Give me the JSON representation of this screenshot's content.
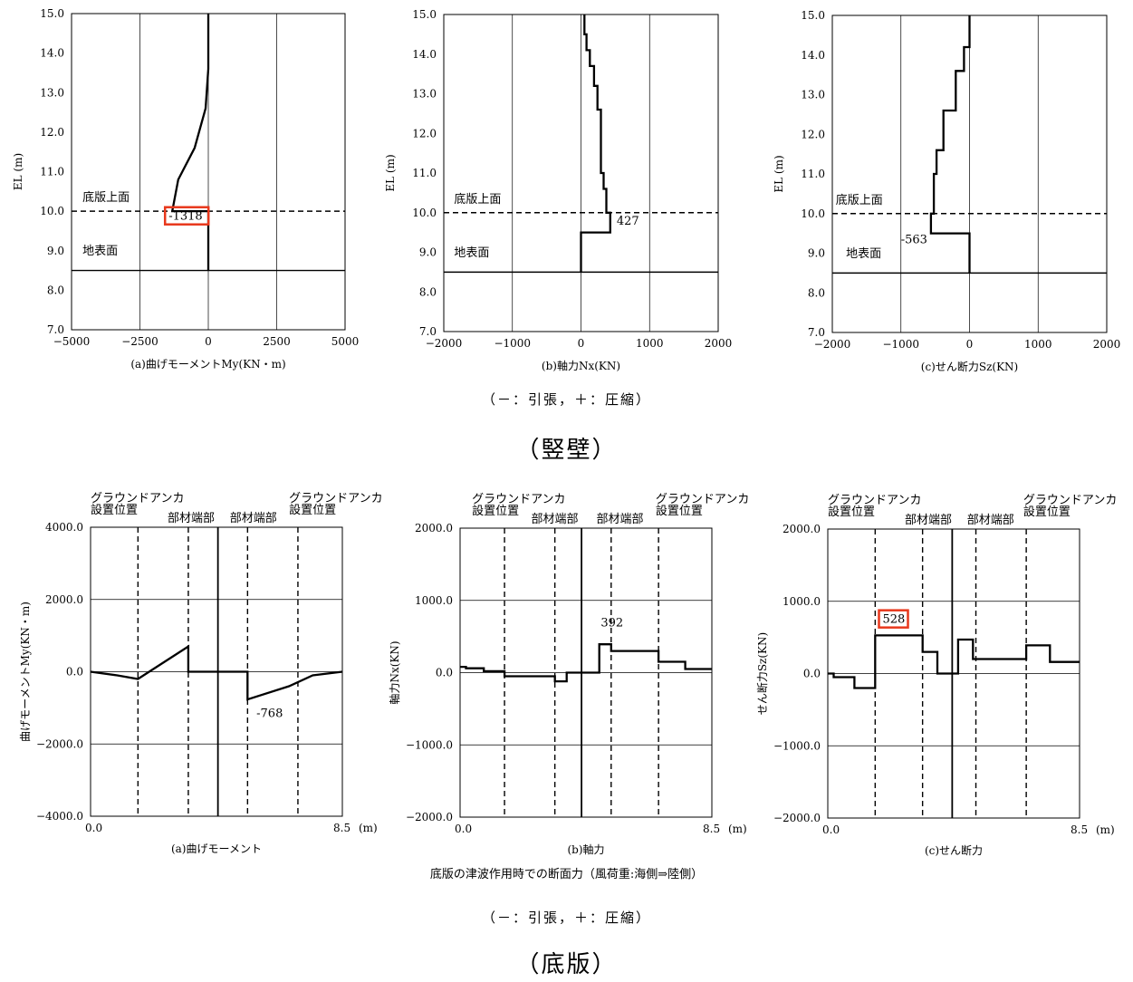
{
  "page": {
    "wall_note": "（－：引張，＋：圧縮）",
    "wall_title": "（竪壁）",
    "slab_caption": "底版の津波作用時での断面力（風荷重:海側⇒陸側）",
    "slab_note": "（－：引張，＋：圧縮）",
    "slab_title": "（底版）"
  },
  "chart_data": [
    {
      "id": "wall_moment",
      "type": "line",
      "orientation": "vertical",
      "xlabel": "(a)曲げモーメントMy(KN・m)",
      "ylabel": "EL (m)",
      "xlim": [
        -5000,
        5000
      ],
      "ylim": [
        7.0,
        15.0
      ],
      "xticks": [
        -5000,
        -2500,
        0,
        2500,
        5000
      ],
      "xtick_labels": [
        "−5000",
        "−2500",
        "0",
        "2500",
        "5000"
      ],
      "yticks": [
        7,
        8,
        9,
        10,
        11,
        12,
        13,
        14,
        15
      ],
      "ytick_labels": [
        "7.0",
        "8.0",
        "9.0",
        "10.0",
        "11.0",
        "12.0",
        "13.0",
        "14.0",
        "15.0"
      ],
      "grid": true,
      "series": [
        {
          "x": [
            0,
            0,
            -1318,
            -1318,
            -1100,
            -500,
            -100,
            0,
            0
          ],
          "y": [
            8.5,
            10.0,
            10.0,
            10.0,
            10.8,
            11.6,
            12.6,
            13.6,
            15.0
          ]
        }
      ],
      "hlines": [
        {
          "y": 10.0,
          "style": "dashed"
        },
        {
          "y": 8.5,
          "style": "solid"
        }
      ],
      "annotations": [
        {
          "text": "底版上面",
          "x": -4600,
          "y": 10.25
        },
        {
          "text": "地表面",
          "x": -4600,
          "y": 8.9
        },
        {
          "text": "-1318",
          "x": -1450,
          "y": 9.78,
          "boxed": true
        }
      ]
    },
    {
      "id": "wall_axial",
      "type": "line",
      "orientation": "vertical",
      "xlabel": "(b)軸力Nx(KN)",
      "ylabel": "EL (m)",
      "xlim": [
        -2000,
        2000
      ],
      "ylim": [
        7.0,
        15.0
      ],
      "xticks": [
        -2000,
        -1000,
        0,
        1000,
        2000
      ],
      "xtick_labels": [
        "−2000",
        "−1000",
        "0",
        "1000",
        "2000"
      ],
      "yticks": [
        7,
        8,
        9,
        10,
        11,
        12,
        13,
        14,
        15
      ],
      "ytick_labels": [
        "7.0",
        "8.0",
        "9.0",
        "10.0",
        "11.0",
        "12.0",
        "13.0",
        "14.0",
        "15.0"
      ],
      "grid": true,
      "series": [
        {
          "x": [
            0,
            0,
            427,
            427,
            370,
            370,
            330,
            330,
            290,
            290,
            240,
            240,
            190,
            190,
            130,
            130,
            80,
            80,
            50,
            50
          ],
          "y": [
            8.5,
            9.5,
            9.5,
            10.0,
            10.0,
            10.6,
            10.6,
            11.0,
            11.0,
            12.6,
            12.6,
            13.2,
            13.2,
            13.7,
            13.7,
            14.1,
            14.1,
            14.5,
            14.5,
            15.0
          ]
        }
      ],
      "hlines": [
        {
          "y": 10.0,
          "style": "dashed"
        },
        {
          "y": 8.5,
          "style": "solid"
        }
      ],
      "annotations": [
        {
          "text": "底版上面",
          "x": -1850,
          "y": 10.25
        },
        {
          "text": "地表面",
          "x": -1850,
          "y": 8.9
        },
        {
          "text": "427",
          "x": 520,
          "y": 9.7
        }
      ]
    },
    {
      "id": "wall_shear",
      "type": "line",
      "orientation": "vertical",
      "xlabel": "(c)せん断力Sz(KN)",
      "ylabel": "EL (m)",
      "xlim": [
        -2000,
        2000
      ],
      "ylim": [
        7.0,
        15.0
      ],
      "xticks": [
        -2000,
        -1000,
        0,
        1000,
        2000
      ],
      "xtick_labels": [
        "−2000",
        "−1000",
        "0",
        "1000",
        "2000"
      ],
      "yticks": [
        7,
        8,
        9,
        10,
        11,
        12,
        13,
        14,
        15
      ],
      "ytick_labels": [
        "7.0",
        "8.0",
        "9.0",
        "10.0",
        "11.0",
        "12.0",
        "13.0",
        "14.0",
        "15.0"
      ],
      "grid": true,
      "series": [
        {
          "x": [
            0,
            0,
            -563,
            -563,
            -520,
            -520,
            -480,
            -480,
            -380,
            -380,
            -200,
            -200,
            -80,
            -80,
            0,
            0
          ],
          "y": [
            8.5,
            9.5,
            9.5,
            10.0,
            10.0,
            11.0,
            11.0,
            11.6,
            11.6,
            12.6,
            12.6,
            13.6,
            13.6,
            14.2,
            14.2,
            15.0
          ]
        }
      ],
      "hlines": [
        {
          "y": 10.0,
          "style": "dashed"
        },
        {
          "y": 8.5,
          "style": "solid"
        }
      ],
      "annotations": [
        {
          "text": "底版上面",
          "x": -1950,
          "y": 10.25
        },
        {
          "text": "地表面",
          "x": -1800,
          "y": 8.9
        },
        {
          "text": "-563",
          "x": -1000,
          "y": 9.25
        }
      ]
    },
    {
      "id": "slab_moment",
      "type": "line",
      "xlabel": "(a)曲げモーメント",
      "ylabel": "曲げモーメントMy(KN・m)",
      "xlim": [
        0,
        8.5
      ],
      "ylim": [
        -4000,
        4000
      ],
      "x_end_labels": [
        "0.0",
        "8.5"
      ],
      "x_unit": "(m)",
      "yticks": [
        -4000,
        -2000,
        0,
        2000,
        4000
      ],
      "ytick_labels": [
        "−4000.0",
        "−2000.0",
        "0.0",
        "2000.0",
        "4000.0"
      ],
      "grid": true,
      "series": [
        {
          "x": [
            0,
            0.9,
            1.6,
            3.3,
            3.3,
            5.3,
            5.3,
            6.7,
            7.5,
            8.5
          ],
          "y": [
            0,
            -100,
            -200,
            700,
            0,
            0,
            -768,
            -400,
            -100,
            0
          ]
        }
      ],
      "vlines": [
        {
          "x": 1.6,
          "style": "dashed"
        },
        {
          "x": 3.3,
          "style": "dashed"
        },
        {
          "x": 4.3,
          "style": "solid"
        },
        {
          "x": 5.3,
          "style": "dashed"
        },
        {
          "x": 7.0,
          "style": "dashed"
        }
      ],
      "top_labels": [
        {
          "text": "グラウンドアンカ",
          "x": 0.0,
          "row": 0
        },
        {
          "text": "設置位置",
          "x": 0.0,
          "row": 1
        },
        {
          "text": "部材端部",
          "x": 2.6,
          "row": 2
        },
        {
          "text": "部材端部",
          "x": 4.7,
          "row": 2
        },
        {
          "text": "グラウンドアンカ",
          "x": 6.7,
          "row": 0
        },
        {
          "text": "設置位置",
          "x": 6.7,
          "row": 1
        }
      ],
      "annotations": [
        {
          "text": "-768",
          "x": 5.6,
          "y": -1250
        }
      ]
    },
    {
      "id": "slab_axial",
      "type": "line",
      "xlabel": "(b)軸力",
      "ylabel": "軸力Nx(KN)",
      "xlim": [
        0,
        8.5
      ],
      "ylim": [
        -2000,
        2000
      ],
      "x_end_labels": [
        "0.0",
        "8.5"
      ],
      "x_unit": "(m)",
      "yticks": [
        -2000,
        -1000,
        0,
        1000,
        2000
      ],
      "ytick_labels": [
        "−2000.0",
        "−1000.0",
        "0.0",
        "1000.0",
        "2000.0"
      ],
      "grid": true,
      "series": [
        {
          "x": [
            0,
            0.2,
            0.2,
            0.8,
            0.8,
            1.5,
            1.5,
            3.2,
            3.2,
            3.6,
            3.6,
            4.7,
            4.7,
            5.1,
            5.1,
            6.7,
            6.7,
            7.6,
            7.6,
            8.5
          ],
          "y": [
            80,
            80,
            60,
            60,
            20,
            20,
            -50,
            -50,
            -120,
            -120,
            0,
            0,
            392,
            392,
            300,
            300,
            150,
            150,
            50,
            50
          ]
        }
      ],
      "vlines": [
        {
          "x": 1.5,
          "style": "dashed"
        },
        {
          "x": 3.2,
          "style": "dashed"
        },
        {
          "x": 4.1,
          "style": "solid"
        },
        {
          "x": 5.1,
          "style": "dashed"
        },
        {
          "x": 6.7,
          "style": "dashed"
        }
      ],
      "top_labels": [
        {
          "text": "グラウンドアンカ",
          "x": 0.4,
          "row": 0
        },
        {
          "text": "設置位置",
          "x": 0.4,
          "row": 1
        },
        {
          "text": "部材端部",
          "x": 2.4,
          "row": 2
        },
        {
          "text": "部材端部",
          "x": 4.6,
          "row": 2
        },
        {
          "text": "グラウンドアンカ",
          "x": 6.6,
          "row": 0
        },
        {
          "text": "設置位置",
          "x": 6.6,
          "row": 1
        }
      ],
      "annotations": [
        {
          "text": "392",
          "x": 4.75,
          "y": 640
        }
      ]
    },
    {
      "id": "slab_shear",
      "type": "line",
      "xlabel": "(c)せん断力",
      "ylabel": "せん断力Sz(KN)",
      "xlim": [
        0,
        8.5
      ],
      "ylim": [
        -2000,
        2000
      ],
      "x_end_labels": [
        "0.0",
        "8.5"
      ],
      "x_unit": "(m)",
      "yticks": [
        -2000,
        -1000,
        0,
        1000,
        2000
      ],
      "ytick_labels": [
        "−2000.0",
        "−1000.0",
        "0.0",
        "1000.0",
        "2000.0"
      ],
      "grid": true,
      "series": [
        {
          "x": [
            0,
            0.2,
            0.2,
            0.9,
            0.9,
            1.6,
            1.6,
            3.2,
            3.2,
            3.7,
            3.7,
            4.4,
            4.4,
            4.9,
            4.9,
            6.7,
            6.7,
            7.5,
            7.5,
            8.5
          ],
          "y": [
            0,
            0,
            -50,
            -50,
            -200,
            -200,
            528,
            528,
            300,
            300,
            0,
            0,
            470,
            470,
            200,
            200,
            390,
            390,
            160,
            160
          ]
        }
      ],
      "vlines": [
        {
          "x": 1.6,
          "style": "dashed"
        },
        {
          "x": 3.2,
          "style": "dashed"
        },
        {
          "x": 4.2,
          "style": "solid"
        },
        {
          "x": 5.0,
          "style": "dashed"
        },
        {
          "x": 6.7,
          "style": "dashed"
        }
      ],
      "top_labels": [
        {
          "text": "グラウンドアンカ",
          "x": 0.0,
          "row": 0
        },
        {
          "text": "設置位置",
          "x": 0.0,
          "row": 1
        },
        {
          "text": "部材端部",
          "x": 2.6,
          "row": 2
        },
        {
          "text": "部材端部",
          "x": 4.7,
          "row": 2
        },
        {
          "text": "グラウンドアンカ",
          "x": 6.6,
          "row": 0
        },
        {
          "text": "設置位置",
          "x": 6.6,
          "row": 1
        }
      ],
      "annotations": [
        {
          "text": "528",
          "x": 1.85,
          "y": 700,
          "boxed": true
        }
      ]
    }
  ]
}
